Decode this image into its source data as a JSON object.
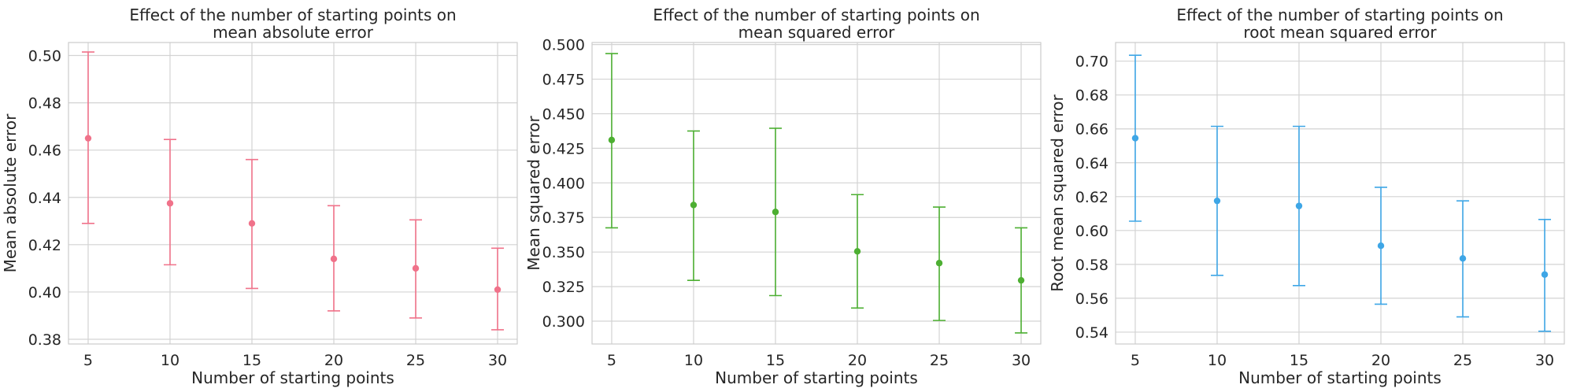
{
  "chart_data": [
    {
      "type": "scatter",
      "title_lines": [
        "Effect of the number of starting points on",
        "mean absolute error"
      ],
      "xlabel": "Number of starting points",
      "ylabel": "Mean absolute error",
      "color": "#f0728a",
      "x": [
        5,
        10,
        15,
        20,
        25,
        30
      ],
      "y": [
        0.465,
        0.4375,
        0.429,
        0.414,
        0.41,
        0.401
      ],
      "yerr_low": [
        0.429,
        0.4115,
        0.4015,
        0.392,
        0.389,
        0.384
      ],
      "yerr_high": [
        0.5015,
        0.4645,
        0.456,
        0.4365,
        0.4305,
        0.4185
      ],
      "xlim": [
        3.8,
        31.2
      ],
      "ylim": [
        0.378,
        0.5055
      ],
      "xticks": [
        5,
        10,
        15,
        20,
        25,
        30
      ],
      "yticks": [
        0.38,
        0.4,
        0.42,
        0.44,
        0.46,
        0.48,
        0.5
      ],
      "ytick_labels": [
        "0.38",
        "0.40",
        "0.42",
        "0.44",
        "0.46",
        "0.48",
        "0.50"
      ],
      "grid": true
    },
    {
      "type": "scatter",
      "title_lines": [
        "Effect of the number of starting points on",
        "mean squared error"
      ],
      "xlabel": "Number of starting points",
      "ylabel": "Mean squared error",
      "color": "#4daf32",
      "x": [
        5,
        10,
        15,
        20,
        25,
        30
      ],
      "y": [
        0.431,
        0.384,
        0.379,
        0.3505,
        0.342,
        0.3295
      ],
      "yerr_low": [
        0.3675,
        0.3295,
        0.3185,
        0.3095,
        0.3005,
        0.2915
      ],
      "yerr_high": [
        0.4935,
        0.4375,
        0.4395,
        0.3915,
        0.3825,
        0.3675
      ],
      "xlim": [
        3.8,
        31.2
      ],
      "ylim": [
        0.2835,
        0.5015
      ],
      "xticks": [
        5,
        10,
        15,
        20,
        25,
        30
      ],
      "yticks": [
        0.3,
        0.325,
        0.35,
        0.375,
        0.4,
        0.425,
        0.45,
        0.475,
        0.5
      ],
      "ytick_labels": [
        "0.300",
        "0.325",
        "0.350",
        "0.375",
        "0.400",
        "0.425",
        "0.450",
        "0.475",
        "0.500"
      ],
      "grid": true
    },
    {
      "type": "scatter",
      "title_lines": [
        "Effect of the number of starting points on",
        "root mean squared error"
      ],
      "xlabel": "Number of starting points",
      "ylabel": "Root mean squared error",
      "color": "#3ea6e6",
      "x": [
        5,
        10,
        15,
        20,
        25,
        30
      ],
      "y": [
        0.6545,
        0.6175,
        0.6145,
        0.591,
        0.5835,
        0.574
      ],
      "yerr_low": [
        0.6055,
        0.5735,
        0.5675,
        0.5565,
        0.549,
        0.5405
      ],
      "yerr_high": [
        0.7035,
        0.6615,
        0.6615,
        0.6255,
        0.6175,
        0.6065
      ],
      "xlim": [
        3.8,
        31.2
      ],
      "ylim": [
        0.533,
        0.711
      ],
      "xticks": [
        5,
        10,
        15,
        20,
        25,
        30
      ],
      "yticks": [
        0.54,
        0.56,
        0.58,
        0.6,
        0.62,
        0.64,
        0.66,
        0.68,
        0.7
      ],
      "ytick_labels": [
        "0.54",
        "0.56",
        "0.58",
        "0.60",
        "0.62",
        "0.64",
        "0.66",
        "0.68",
        "0.70"
      ],
      "grid": true
    }
  ]
}
